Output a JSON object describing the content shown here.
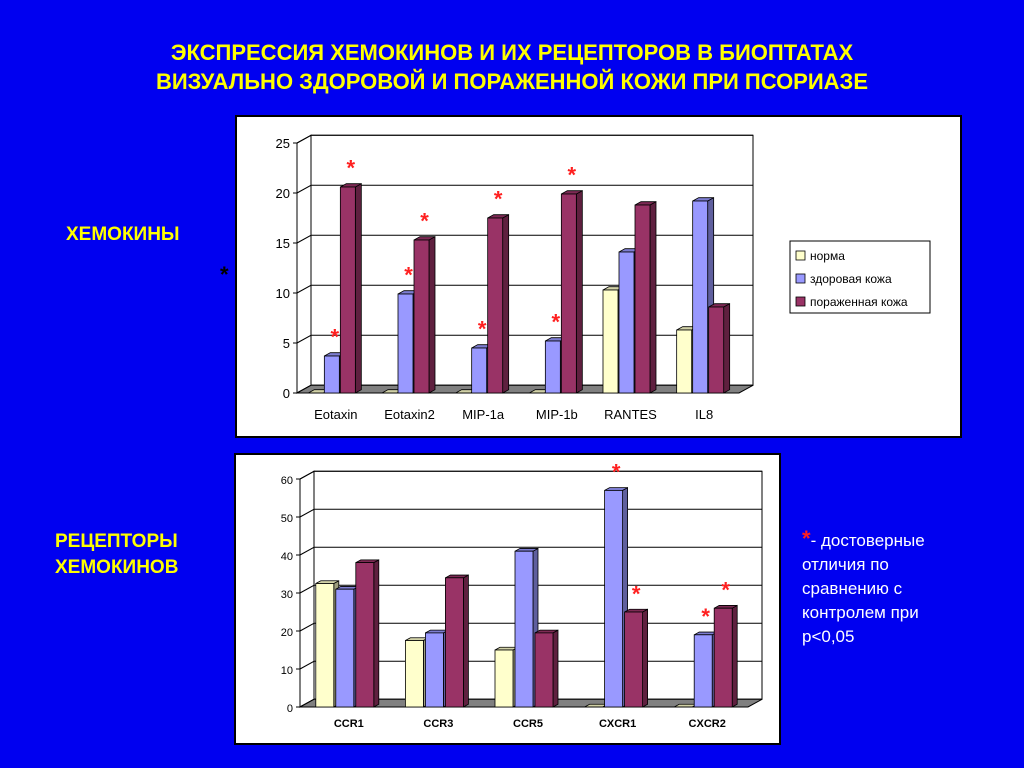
{
  "slide": {
    "title_line1": "ЭКСПРЕССИЯ ХЕМОКИНОВ И ИХ РЕЦЕПТОРОВ В БИОПТАТАХ",
    "title_line2": "ВИЗУАЛЬНО ЗДОРОВОЙ И ПОРАЖЕННОЙ КОЖИ ПРИ ПСОРИАЗЕ",
    "label_chemokines": "ХЕМОКИНЫ",
    "label_receptors_line1": "РЕЦЕПТОРЫ",
    "label_receptors_line2": "ХЕМОКИНОВ",
    "stray_star": "*",
    "note_star": "*",
    "note_text": "- достоверные отличия по сравнению с контролем при p<0,05"
  },
  "colors": {
    "background": "#0000f0",
    "title": "#ffff00",
    "norm": "#ffffcc",
    "healthy": "#9999ff",
    "lesion": "#993366",
    "significance": "#ff2020"
  },
  "chart_data": [
    {
      "type": "bar",
      "categories": [
        "Eotaxin",
        "Eotaxin2",
        "MIP-1a",
        "MIP-1b",
        "RANTES",
        "IL8"
      ],
      "series": [
        {
          "name": "норма",
          "values": [
            0,
            0,
            0,
            0,
            10.3,
            6.3
          ]
        },
        {
          "name": "здоровая кожа",
          "values": [
            3.7,
            9.9,
            4.5,
            5.2,
            14.1,
            19.2
          ]
        },
        {
          "name": "пораженная кожа",
          "values": [
            20.6,
            15.3,
            17.5,
            19.9,
            18.8,
            8.6
          ]
        }
      ],
      "ylim": [
        0,
        25
      ],
      "yticks": [
        0,
        5,
        10,
        15,
        20,
        25
      ],
      "grid": true,
      "legend": "right",
      "significance_marks": [
        {
          "category": "Eotaxin",
          "series": "здоровая кожа",
          "mark": "*"
        },
        {
          "category": "Eotaxin",
          "series": "пораженная кожа",
          "mark": "*"
        },
        {
          "category": "Eotaxin2",
          "series": "здоровая кожа",
          "mark": "*"
        },
        {
          "category": "Eotaxin2",
          "series": "пораженная кожа",
          "mark": "*"
        },
        {
          "category": "MIP-1a",
          "series": "здоровая кожа",
          "mark": "*"
        },
        {
          "category": "MIP-1a",
          "series": "пораженная кожа",
          "mark": "*"
        },
        {
          "category": "MIP-1b",
          "series": "здоровая кожа",
          "mark": "*"
        },
        {
          "category": "MIP-1b",
          "series": "пораженная кожа",
          "mark": "*"
        }
      ]
    },
    {
      "type": "bar",
      "categories": [
        "CCR1",
        "CCR3",
        "CCR5",
        "CXCR1",
        "CXCR2"
      ],
      "series": [
        {
          "name": "норма",
          "values": [
            32.5,
            17.5,
            15,
            0,
            0
          ]
        },
        {
          "name": "здоровая кожа",
          "values": [
            31,
            19.5,
            41,
            57,
            19
          ]
        },
        {
          "name": "пораженная кожа",
          "values": [
            38,
            34,
            19.5,
            25,
            26
          ]
        }
      ],
      "ylim": [
        0,
        60
      ],
      "yticks": [
        0,
        10,
        20,
        30,
        40,
        50,
        60
      ],
      "grid": true,
      "legend": "none",
      "significance_marks": [
        {
          "category": "CXCR1",
          "series": "здоровая кожа",
          "mark": "*"
        },
        {
          "category": "CXCR1",
          "series": "пораженная кожа",
          "mark": "*"
        },
        {
          "category": "CXCR2",
          "series": "здоровая кожа",
          "mark": "*"
        },
        {
          "category": "CXCR2",
          "series": "пораженная кожа",
          "mark": "*"
        }
      ]
    }
  ]
}
